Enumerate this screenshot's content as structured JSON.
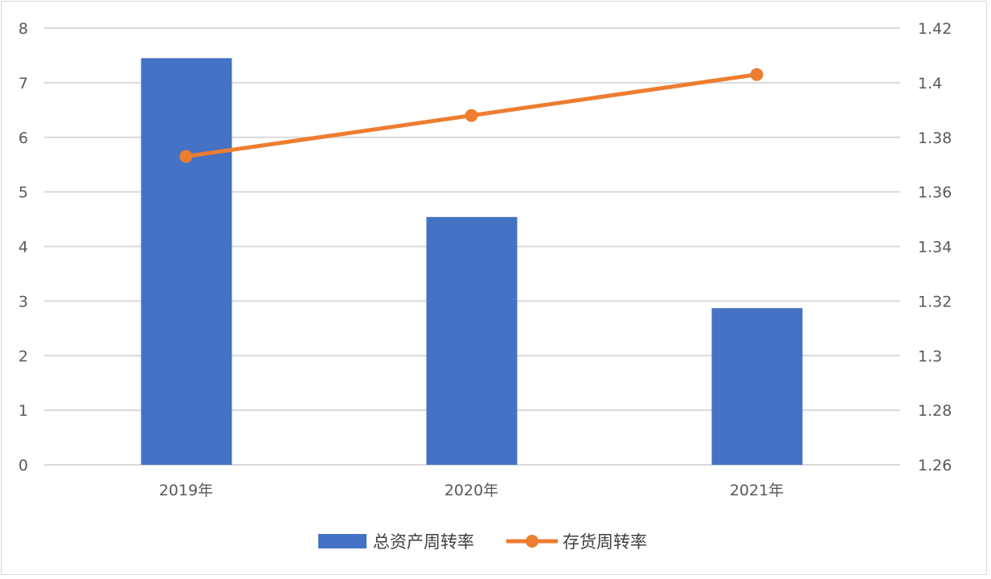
{
  "chart_data": {
    "type": "bar+line",
    "categories": [
      "2019年",
      "2020年",
      "2021年"
    ],
    "series": [
      {
        "name": "总资产周转率",
        "type": "bar",
        "axis": "left",
        "values": [
          7.45,
          4.54,
          2.87
        ],
        "color": "#4472C4"
      },
      {
        "name": "存货周转率",
        "type": "line",
        "axis": "right",
        "values": [
          1.373,
          1.388,
          1.403
        ],
        "color": "#ED7D31"
      }
    ],
    "y_left": {
      "ylim": [
        0,
        8
      ],
      "ticks": [
        "0",
        "1",
        "2",
        "3",
        "4",
        "5",
        "6",
        "7",
        "8"
      ]
    },
    "y_right": {
      "ylim": [
        1.26,
        1.42
      ],
      "ticks": [
        "1.26",
        "1.28",
        "1.3",
        "1.32",
        "1.34",
        "1.36",
        "1.38",
        "1.4",
        "1.42"
      ]
    },
    "grid": true,
    "legend": "bottom"
  }
}
